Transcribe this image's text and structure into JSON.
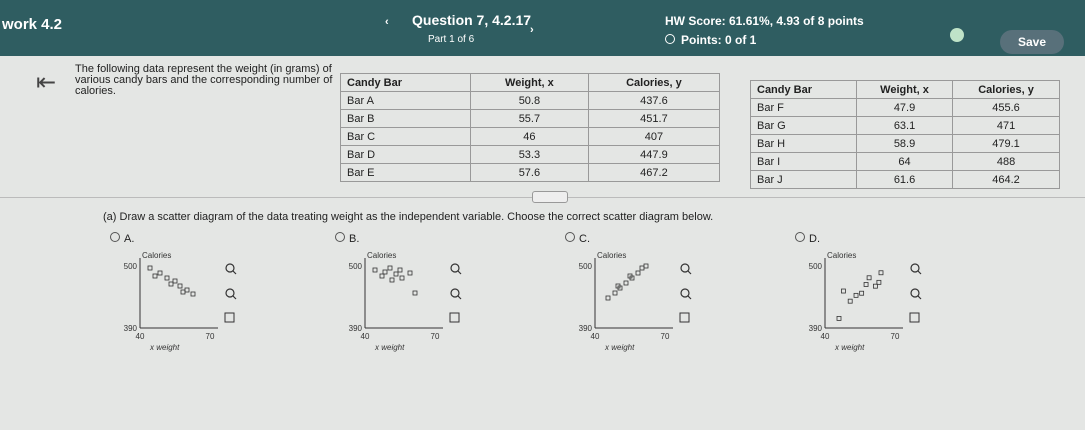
{
  "header": {
    "assignment": "work 4.2",
    "question": "Question 7, 4.2.17",
    "part": "Part 1 of 6",
    "hw_score": "HW Score: 61.61%, 4.93 of 8 points",
    "points": "Points: 0 of 1",
    "save": "Save"
  },
  "problem": {
    "text": "The following data represent the weight (in grams) of various candy bars and the corresponding number of calories."
  },
  "tables": [
    {
      "columns": [
        "Candy Bar",
        "Weight, x",
        "Calories, y"
      ],
      "rows": [
        [
          "Bar A",
          50.8,
          437.6
        ],
        [
          "Bar B",
          55.7,
          451.7
        ],
        [
          "Bar C",
          46,
          407
        ],
        [
          "Bar D",
          53.3,
          447.9
        ],
        [
          "Bar E",
          57.6,
          467.2
        ]
      ]
    },
    {
      "columns": [
        "Candy Bar",
        "Weight, x",
        "Calories, y"
      ],
      "rows": [
        [
          "Bar F",
          47.9,
          455.6
        ],
        [
          "Bar G",
          63.1,
          471
        ],
        [
          "Bar H",
          58.9,
          479.1
        ],
        [
          "Bar I",
          64,
          488
        ],
        [
          "Bar J",
          61.6,
          464.2
        ]
      ]
    }
  ],
  "question": {
    "text": "(a) Draw a scatter diagram of the data treating weight as the independent variable. Choose the correct scatter diagram below."
  },
  "options": [
    {
      "letter": "A.",
      "y_label": "Calories",
      "y_max": 500,
      "y_min": 390,
      "x_min": 40,
      "x_max": 70,
      "x_label": "x weight"
    },
    {
      "letter": "B.",
      "y_label": "Calories",
      "y_max": 500,
      "y_min": 390,
      "x_min": 40,
      "x_max": 70,
      "x_label": "x weight"
    },
    {
      "letter": "C.",
      "y_label": "Calories",
      "y_max": 500,
      "y_min": 390,
      "x_min": 40,
      "x_max": 70,
      "x_label": "x weight"
    },
    {
      "letter": "D.",
      "y_label": "Calories",
      "y_max": 500,
      "y_min": 390,
      "x_min": 40,
      "x_max": 70,
      "x_label": "x weight"
    }
  ]
}
